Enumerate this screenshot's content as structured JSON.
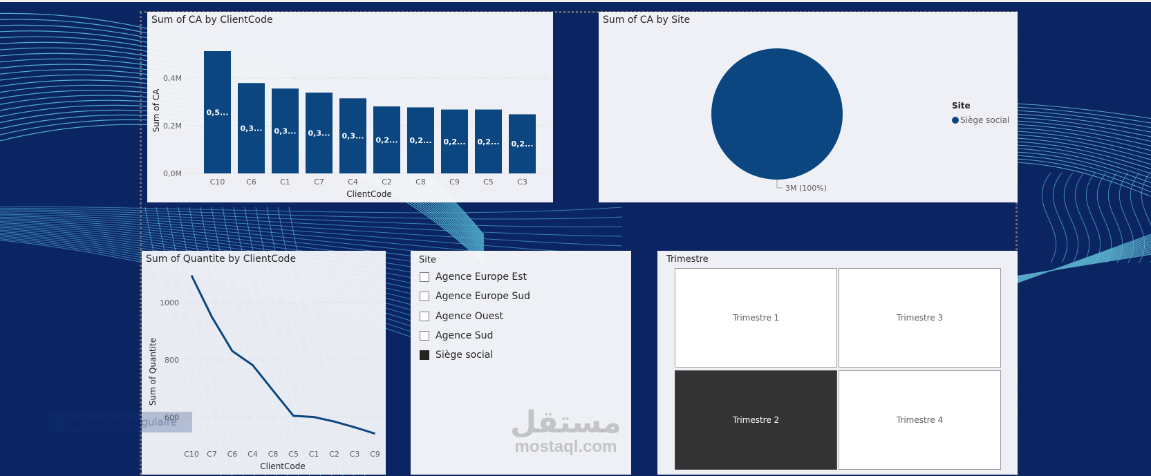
{
  "background": {
    "color": "#0b2563",
    "accent_line_color": "#5fc7de"
  },
  "bar_chart": {
    "title": "Sum of CA by ClientCode",
    "ylabel": "Sum of CA",
    "xlabel": "ClientCode",
    "ticks": [
      "0,0M",
      "0,2M",
      "0,4M"
    ],
    "bar_color": "#0b4680"
  },
  "pie_chart": {
    "title": "Sum of CA by Site",
    "data_label": "3M (100%)",
    "legend_title": "Site",
    "legend_items": [
      {
        "label": "Siège social",
        "color": "#0b4680"
      }
    ]
  },
  "line_chart": {
    "title": "Sum of Quantite by ClientCode",
    "ylabel": "Sum of Quantite",
    "xlabel": "ClientCode",
    "ticks": [
      "600",
      "800",
      "1000"
    ],
    "line_color": "#0b4680"
  },
  "site_slicer": {
    "header": "Site",
    "items": [
      {
        "label": "Agence Europe Est",
        "checked": false
      },
      {
        "label": "Agence Europe Sud",
        "checked": false
      },
      {
        "label": "Agence Ouest",
        "checked": false
      },
      {
        "label": "Agence Sud",
        "checked": false
      },
      {
        "label": "Siège social",
        "checked": true
      }
    ]
  },
  "trimestre_slicer": {
    "header": "Trimestre",
    "tiles": [
      {
        "label": "Trimestre 1",
        "selected": false
      },
      {
        "label": "Trimestre 3",
        "selected": false
      },
      {
        "label": "Trimestre 2",
        "selected": true
      },
      {
        "label": "Trimestre 4",
        "selected": false
      }
    ]
  },
  "overlay": {
    "capture_label": "Capture rectangulaire"
  },
  "watermark": {
    "arabic": "مستقل",
    "latin": "mostaql.com"
  },
  "chart_data": [
    {
      "type": "bar",
      "title": "Sum of CA by ClientCode",
      "xlabel": "ClientCode",
      "ylabel": "Sum of CA",
      "categories": [
        "C10",
        "C6",
        "C1",
        "C7",
        "C4",
        "C2",
        "C8",
        "C9",
        "C5",
        "C3"
      ],
      "values": [
        513000,
        379000,
        356000,
        339000,
        315000,
        281000,
        277000,
        268000,
        268000,
        248000
      ],
      "data_labels": [
        "0,5...",
        "0,3...",
        "0,3...",
        "0,3...",
        "0,3...",
        "0,2...",
        "0,2...",
        "0,2...",
        "0,2...",
        "0,2..."
      ],
      "yticks": [
        "0,0M",
        "0,2M",
        "0,4M"
      ],
      "ylim": [
        0,
        520000
      ],
      "grid": true
    },
    {
      "type": "pie",
      "title": "Sum of CA by Site",
      "categories": [
        "Siège social"
      ],
      "values": [
        3000000
      ],
      "data_labels": [
        "3M (100%)"
      ],
      "legend_title": "Site",
      "legend_position": "right"
    },
    {
      "type": "line",
      "title": "Sum of Quantite by ClientCode",
      "xlabel": "ClientCode",
      "ylabel": "Sum of Quantite",
      "categories": [
        "C10",
        "C7",
        "C6",
        "C4",
        "C8",
        "C5",
        "C1",
        "C2",
        "C3",
        "C9"
      ],
      "values": [
        1095,
        950,
        831,
        782,
        693,
        605,
        601,
        585,
        565,
        543
      ],
      "yticks": [
        600,
        800,
        1000
      ],
      "ylim": [
        500,
        1120
      ],
      "grid": true
    }
  ]
}
